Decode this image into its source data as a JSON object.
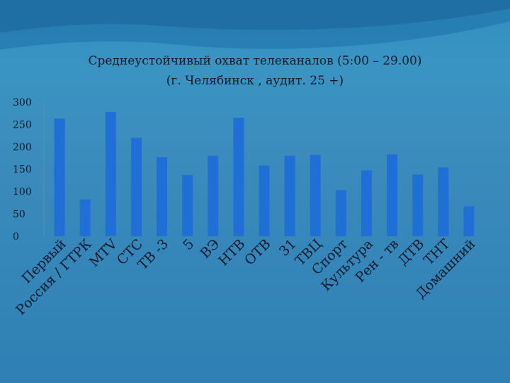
{
  "title_line1": "Среднеустойчивый охват телеканалов  (5:00 – 29.00)",
  "title_line2": "(г. Челябинск , аудит. 25 +)",
  "chart_data": {
    "type": "bar",
    "categories": [
      "Первый",
      "Россия / ГТРК",
      "МТV",
      "СТС",
      "ТВ -3",
      "5",
      "ВЭ",
      "НТВ",
      "ОТВ",
      "31",
      "ТВЦ",
      "Спорт",
      "Культура",
      "Рен - тв",
      "ДТВ",
      "ТНТ",
      "Домашний"
    ],
    "values": [
      263,
      82,
      278,
      220,
      177,
      137,
      180,
      265,
      158,
      180,
      182,
      103,
      147,
      183,
      138,
      154,
      67
    ],
    "ylim": [
      0,
      300
    ],
    "yticks": [
      0,
      50,
      100,
      150,
      200,
      250,
      300
    ],
    "bar_color": "#1f6fd6",
    "grid": false,
    "legend": "none"
  }
}
